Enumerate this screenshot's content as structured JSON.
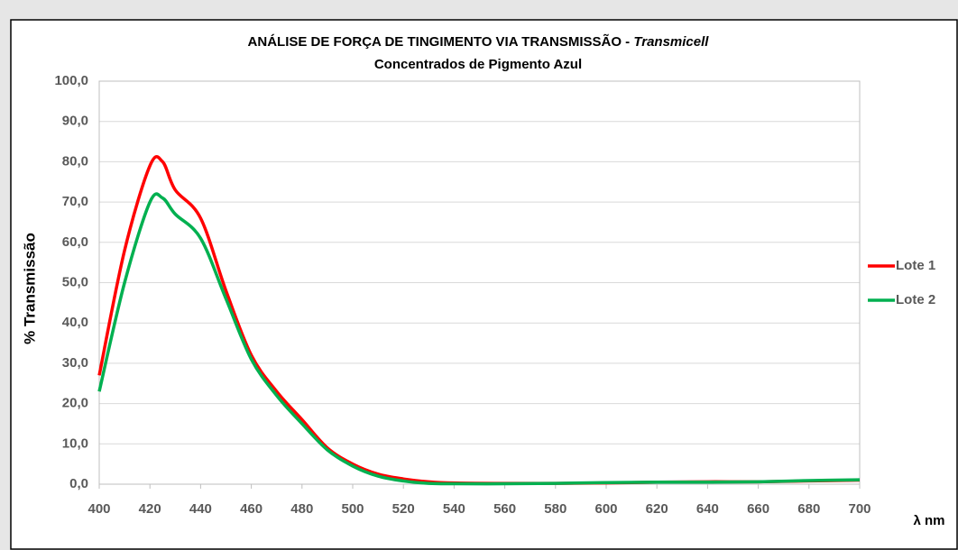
{
  "chart_data": {
    "type": "line",
    "title": "ANÁLISE DE FORÇA DE TINGIMENTO VIA TRANSMISSÃO -",
    "title_emphasis": "Transmicell",
    "subtitle": "Concentrados de Pigmento Azul",
    "y_label": "% Transmissão",
    "x_label": "λ nm",
    "x": [
      400,
      410,
      420,
      425,
      430,
      440,
      450,
      460,
      470,
      480,
      490,
      500,
      510,
      520,
      530,
      540,
      560,
      580,
      600,
      620,
      640,
      660,
      680,
      700
    ],
    "series": [
      {
        "name": "Lote 1",
        "color": "#ff0000",
        "values": [
          27,
          58,
          79,
          80,
          73,
          66,
          48,
          32,
          23,
          16,
          9,
          5,
          2.5,
          1.3,
          0.6,
          0.3,
          0.2,
          0.2,
          0.3,
          0.5,
          0.6,
          0.6,
          0.8,
          1.0
        ]
      },
      {
        "name": "Lote 2",
        "color": "#00b050",
        "values": [
          23,
          50,
          70,
          71,
          67,
          61,
          46,
          31,
          22,
          15,
          8.5,
          4.5,
          2,
          0.8,
          0.2,
          0.1,
          0.1,
          0.2,
          0.4,
          0.5,
          0.5,
          0.6,
          0.9,
          1.1
        ]
      }
    ],
    "xlim": [
      400,
      700
    ],
    "xticks": [
      400,
      420,
      440,
      460,
      480,
      500,
      520,
      540,
      560,
      580,
      600,
      620,
      640,
      660,
      680,
      700
    ],
    "ylim": [
      0,
      100
    ],
    "yticks": [
      {
        "value": 0,
        "label": "0,0"
      },
      {
        "value": 10,
        "label": "10,0"
      },
      {
        "value": 20,
        "label": "20,0"
      },
      {
        "value": 30,
        "label": "30,0"
      },
      {
        "value": 40,
        "label": "40,0"
      },
      {
        "value": 50,
        "label": "50,0"
      },
      {
        "value": 60,
        "label": "60,0"
      },
      {
        "value": 70,
        "label": "70,0"
      },
      {
        "value": 80,
        "label": "80,0"
      },
      {
        "value": 90,
        "label": "90,0"
      },
      {
        "value": 100,
        "label": "100,0"
      }
    ],
    "grid": true,
    "legend": "right"
  }
}
